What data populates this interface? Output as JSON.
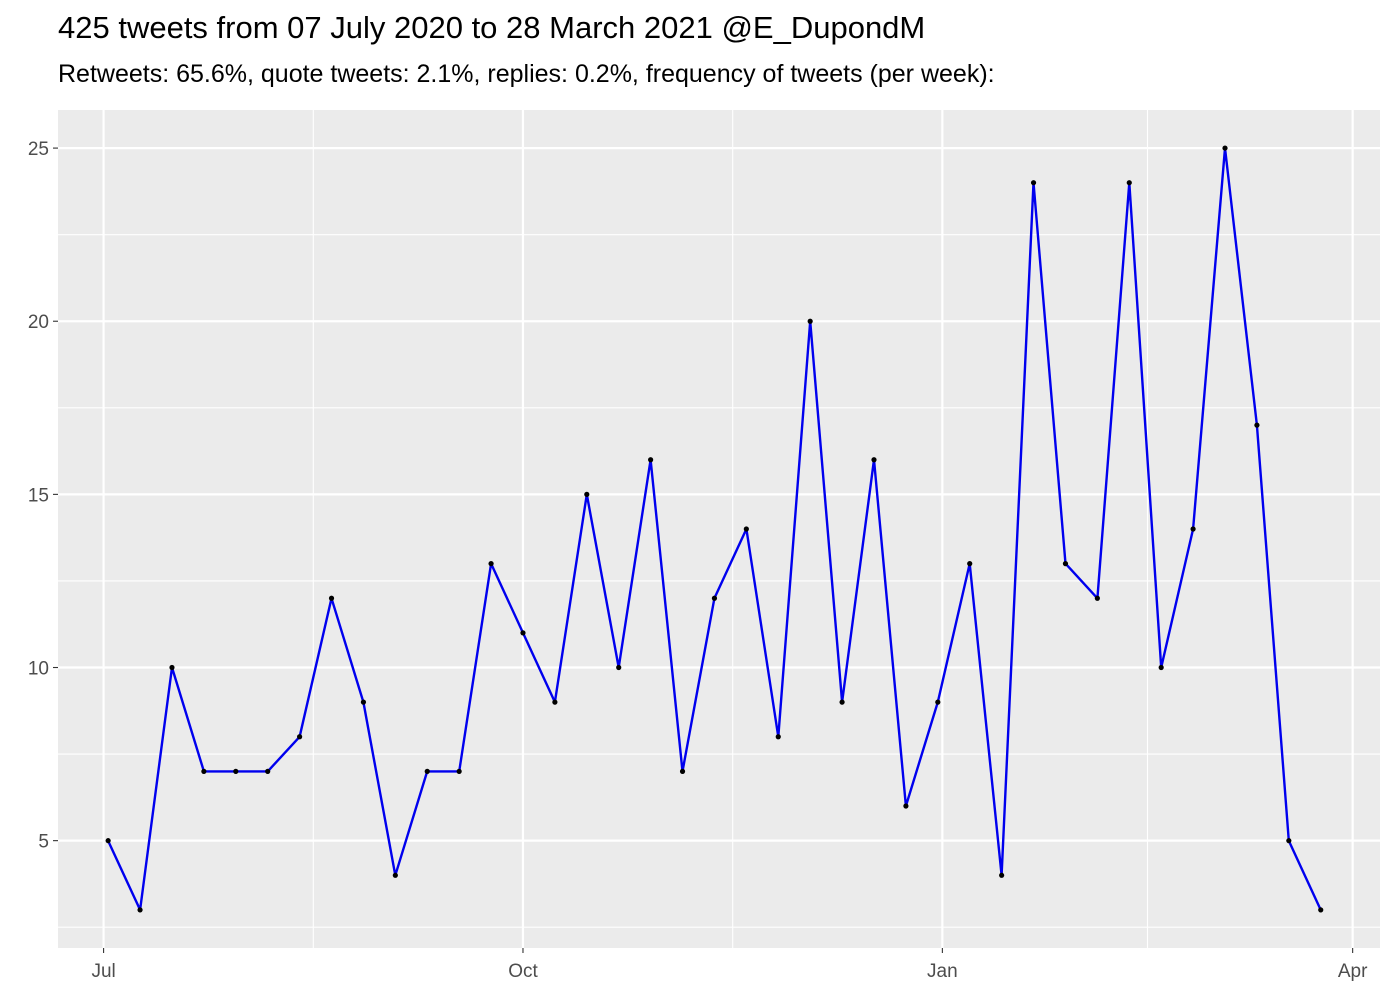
{
  "title": "425 tweets from 07 July 2020 to 28 March 2021 @E_DupondM",
  "subtitle": "Retweets: 65.6%, quote tweets: 2.1%, replies: 0.2%, frequency of tweets (per week):",
  "chart_data": {
    "type": "line",
    "title": "425 tweets from 07 July 2020 to 28 March 2021 @E_DupondM",
    "subtitle": "Retweets: 65.6%, quote tweets: 2.1%, replies: 0.2%, frequency of tweets (per week):",
    "xlabel": "",
    "ylabel": "",
    "x_type": "date",
    "x": [
      "2020-07-02",
      "2020-07-09",
      "2020-07-16",
      "2020-07-23",
      "2020-07-30",
      "2020-08-06",
      "2020-08-13",
      "2020-08-20",
      "2020-08-27",
      "2020-09-03",
      "2020-09-10",
      "2020-09-17",
      "2020-09-24",
      "2020-10-01",
      "2020-10-08",
      "2020-10-15",
      "2020-10-22",
      "2020-10-29",
      "2020-11-05",
      "2020-11-12",
      "2020-11-19",
      "2020-11-26",
      "2020-12-03",
      "2020-12-10",
      "2020-12-17",
      "2020-12-24",
      "2020-12-31",
      "2021-01-07",
      "2021-01-14",
      "2021-01-21",
      "2021-01-28",
      "2021-02-04",
      "2021-02-11",
      "2021-02-18",
      "2021-02-25",
      "2021-03-04",
      "2021-03-11",
      "2021-03-18",
      "2021-03-25"
    ],
    "y": [
      5,
      3,
      10,
      7,
      7,
      7,
      8,
      12,
      9,
      4,
      7,
      7,
      13,
      11,
      9,
      15,
      10,
      16,
      7,
      12,
      14,
      8,
      20,
      9,
      16,
      6,
      9,
      13,
      4,
      24,
      13,
      12,
      24,
      10,
      14,
      25,
      17,
      5,
      3
    ],
    "x_ticks": [
      {
        "date": "2020-07-01",
        "label": "Jul"
      },
      {
        "date": "2020-10-01",
        "label": "Oct"
      },
      {
        "date": "2021-01-01",
        "label": "Jan"
      },
      {
        "date": "2021-04-01",
        "label": "Apr"
      }
    ],
    "x_minor_breaks": [
      "2020-08-16",
      "2020-11-16",
      "2021-02-15"
    ],
    "xlim": [
      "2020-06-21",
      "2021-04-07"
    ],
    "y_ticks": [
      5,
      10,
      15,
      20,
      25
    ],
    "y_minor_breaks": [
      2.5,
      7.5,
      12.5,
      17.5,
      22.5
    ],
    "ylim": [
      1.9,
      26.1
    ],
    "grid": true,
    "legend": "none",
    "colors": {
      "line": "#0000ee",
      "points": "#000000",
      "panel_background": "#ebebeb",
      "grid": "#ffffff",
      "tick_label": "#4d4d4d"
    }
  }
}
